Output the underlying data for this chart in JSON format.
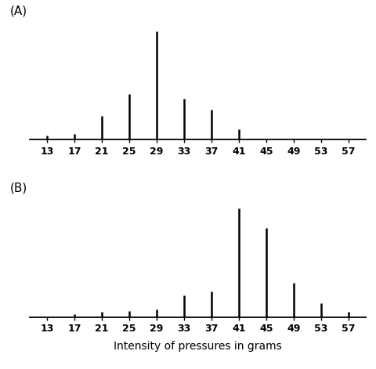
{
  "x_ticks": [
    13,
    17,
    21,
    25,
    29,
    33,
    37,
    41,
    45,
    49,
    53,
    57
  ],
  "xlabel": "Intensity of pressures in grams",
  "label_A": "(A)",
  "label_B": "(B)",
  "graph_A": {
    "x": [
      13,
      17,
      21,
      25,
      29,
      33,
      37,
      41
    ],
    "heights": [
      0.04,
      0.05,
      0.22,
      0.42,
      1.0,
      0.38,
      0.28,
      0.1
    ]
  },
  "graph_B": {
    "x": [
      17,
      21,
      25,
      29,
      33,
      37,
      41,
      45,
      49,
      53,
      57
    ],
    "heights": [
      0.03,
      0.05,
      0.06,
      0.07,
      0.2,
      0.24,
      1.0,
      0.82,
      0.32,
      0.13,
      0.05
    ]
  },
  "bar_color": "#000000",
  "bg_color": "#ffffff",
  "linewidth": 1.8
}
